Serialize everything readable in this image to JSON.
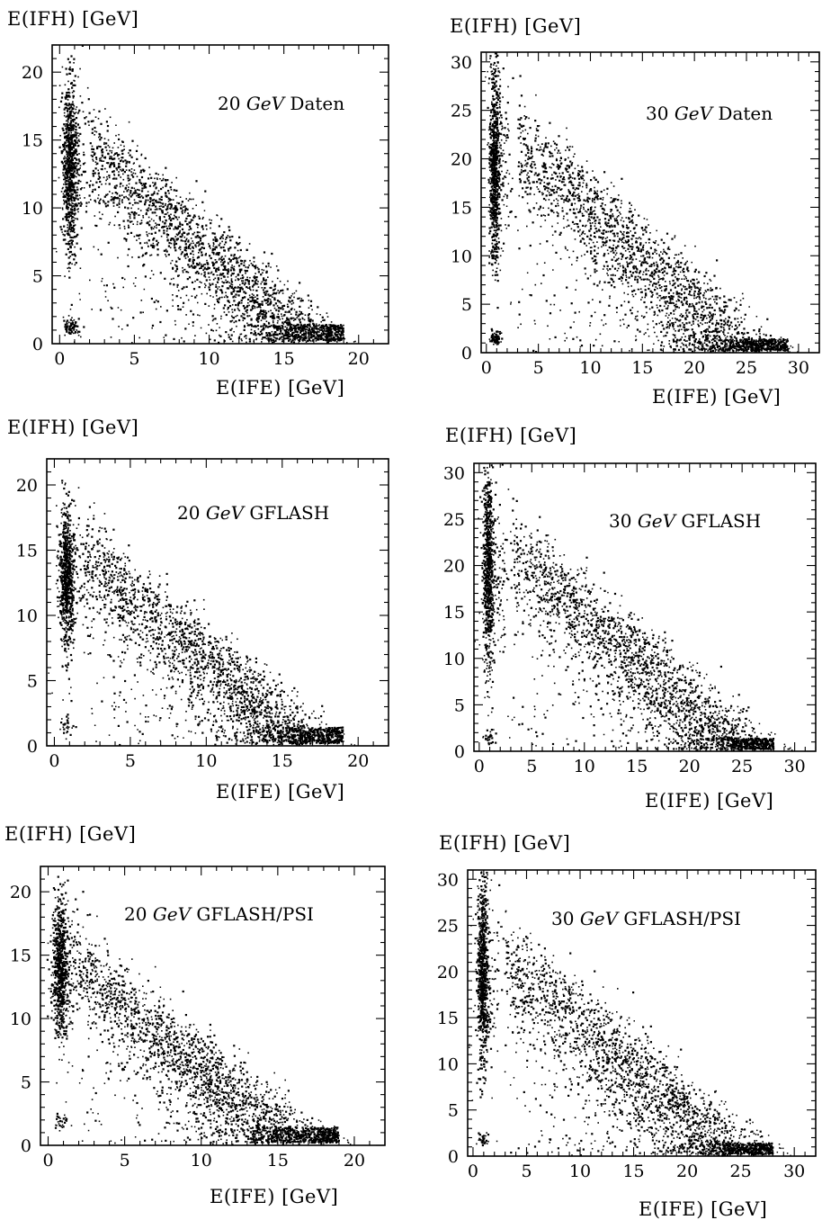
{
  "chart_data": [
    {
      "type": "scatter",
      "xlabel": "E(IFE)  [GeV]",
      "ylabel": "E(IFH)  [GeV]",
      "annotation": {
        "energy": "20",
        "unit": "GeV",
        "label": "Daten"
      },
      "xlim": [
        -0.5,
        22
      ],
      "ylim": [
        0,
        22
      ],
      "xticks": [
        0,
        5,
        10,
        15,
        20
      ],
      "yticks": [
        0,
        5,
        10,
        15,
        20
      ],
      "beam_energy": 20,
      "components": [
        {
          "region": "pion-punchthrough band",
          "x_center": 0.7,
          "y_range": [
            7,
            19
          ],
          "points": 900
        },
        {
          "region": "diagonal shower band",
          "sum_energy_peak": 18,
          "x_range": [
            2,
            19
          ],
          "points": 2400
        },
        {
          "region": "low-energy cluster",
          "x_center": 0.8,
          "y_center": 1.3,
          "points": 80
        }
      ]
    },
    {
      "type": "scatter",
      "xlabel": "E(IFE)  [GeV]",
      "ylabel": "E(IFH)  [GeV]",
      "annotation": {
        "energy": "30",
        "unit": "GeV",
        "label": "Daten"
      },
      "xlim": [
        -0.5,
        32
      ],
      "ylim": [
        0,
        31
      ],
      "xticks": [
        0,
        5,
        10,
        15,
        20,
        25,
        30
      ],
      "yticks": [
        0,
        5,
        10,
        15,
        20,
        25,
        30
      ],
      "beam_energy": 30,
      "components": [
        {
          "region": "pion-punchthrough band",
          "x_center": 0.8,
          "y_range": [
            10,
            28
          ],
          "points": 900
        },
        {
          "region": "diagonal shower band",
          "sum_energy_peak": 27,
          "x_range": [
            3,
            29
          ],
          "points": 2400
        },
        {
          "region": "low-energy cluster",
          "x_center": 0.9,
          "y_center": 1.5,
          "points": 70
        }
      ]
    },
    {
      "type": "scatter",
      "xlabel": "E(IFE)  [GeV]",
      "ylabel": "E(IFH)  [GeV]",
      "annotation": {
        "energy": "20",
        "unit": "GeV",
        "label": "GFLASH"
      },
      "xlim": [
        -0.5,
        22
      ],
      "ylim": [
        0,
        22
      ],
      "xticks": [
        0,
        5,
        10,
        15,
        20
      ],
      "yticks": [
        0,
        5,
        10,
        15,
        20
      ],
      "beam_energy": 20,
      "components": [
        {
          "region": "pion-punchthrough band",
          "x_center": 0.8,
          "y_range": [
            8,
            18
          ],
          "points": 850
        },
        {
          "region": "diagonal shower band",
          "sum_energy_peak": 18,
          "x_range": [
            2,
            19
          ],
          "points": 2400
        },
        {
          "region": "low-energy cluster",
          "x_center": 0.8,
          "y_center": 1.5,
          "points": 30
        }
      ]
    },
    {
      "type": "scatter",
      "xlabel": "E(IFE)  [GeV]",
      "ylabel": "E(IFH)  [GeV]",
      "annotation": {
        "energy": "30",
        "unit": "GeV",
        "label": "GFLASH"
      },
      "xlim": [
        -0.5,
        32
      ],
      "ylim": [
        0,
        31
      ],
      "xticks": [
        0,
        5,
        10,
        15,
        20,
        25,
        30
      ],
      "yticks": [
        0,
        5,
        10,
        15,
        20,
        25,
        30
      ],
      "beam_energy": 30,
      "components": [
        {
          "region": "pion-punchthrough band",
          "x_center": 0.9,
          "y_range": [
            10,
            29
          ],
          "points": 850
        },
        {
          "region": "diagonal shower band",
          "sum_energy_peak": 27,
          "x_range": [
            3,
            28
          ],
          "points": 2400
        },
        {
          "region": "low-energy cluster",
          "x_center": 0.9,
          "y_center": 1.5,
          "points": 30
        }
      ]
    },
    {
      "type": "scatter",
      "xlabel": "E(IFE)  [GeV]",
      "ylabel": "E(IFH)  [GeV]",
      "annotation": {
        "energy": "20",
        "unit": "GeV",
        "label": "GFLASH/PSI"
      },
      "xlim": [
        -0.5,
        22
      ],
      "ylim": [
        0,
        22
      ],
      "xticks": [
        0,
        5,
        10,
        15,
        20
      ],
      "yticks": [
        0,
        5,
        10,
        15,
        20
      ],
      "beam_energy": 20,
      "components": [
        {
          "region": "pion-punchthrough band",
          "x_center": 0.8,
          "y_range": [
            9,
            19
          ],
          "points": 850
        },
        {
          "region": "diagonal shower band",
          "sum_energy_peak": 17.5,
          "x_range": [
            2,
            19
          ],
          "points": 2400
        },
        {
          "region": "low-energy cluster",
          "x_center": 0.8,
          "y_center": 1.8,
          "points": 30
        }
      ]
    },
    {
      "type": "scatter",
      "xlabel": "E(IFE)  [GeV]",
      "ylabel": "E(IFH)  [GeV]",
      "annotation": {
        "energy": "30",
        "unit": "GeV",
        "label": "GFLASH/PSI"
      },
      "xlim": [
        -0.5,
        32
      ],
      "ylim": [
        0,
        31
      ],
      "xticks": [
        0,
        5,
        10,
        15,
        20,
        25,
        30
      ],
      "yticks": [
        0,
        5,
        10,
        15,
        20,
        25,
        30
      ],
      "beam_energy": 30,
      "components": [
        {
          "region": "pion-punchthrough band",
          "x_center": 0.9,
          "y_range": [
            11,
            29
          ],
          "points": 850
        },
        {
          "region": "diagonal shower band",
          "sum_energy_peak": 26.5,
          "x_range": [
            3,
            28
          ],
          "points": 2400
        },
        {
          "region": "low-energy cluster",
          "x_center": 0.9,
          "y_center": 1.8,
          "points": 30
        }
      ]
    }
  ]
}
